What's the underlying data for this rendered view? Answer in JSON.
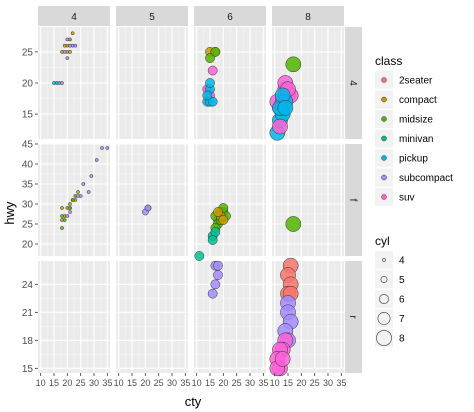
{
  "chart_data": {
    "type": "scatter",
    "xlabel": "cty",
    "ylabel": "hwy",
    "xlim": [
      9,
      36
    ],
    "x_ticks": [
      10,
      15,
      20,
      25,
      30,
      35
    ],
    "facet_cols": [
      "4",
      "5",
      "6",
      "8"
    ],
    "facet_rows": [
      "4",
      "f",
      "r"
    ],
    "row_ylims": [
      [
        11,
        29
      ],
      [
        17,
        45
      ],
      [
        14.5,
        26.5
      ]
    ],
    "row_yticks": [
      [
        15,
        20,
        25
      ],
      [
        20,
        25,
        30,
        35,
        40,
        45
      ],
      [
        15,
        18,
        21,
        24
      ]
    ],
    "grid": true,
    "legend_position": "right",
    "class_legend": {
      "title": "class",
      "items": [
        {
          "label": "2seater",
          "color": "#F8766D"
        },
        {
          "label": "compact",
          "color": "#C49A00"
        },
        {
          "label": "midsize",
          "color": "#53B400"
        },
        {
          "label": "minivan",
          "color": "#00C094"
        },
        {
          "label": "pickup",
          "color": "#00B6EB"
        },
        {
          "label": "subcompact",
          "color": "#A58AFF"
        },
        {
          "label": "suv",
          "color": "#FB61D7"
        }
      ]
    },
    "size_legend": {
      "title": "cyl",
      "items": [
        {
          "label": "4",
          "value": 4
        },
        {
          "label": "5",
          "value": 5
        },
        {
          "label": "6",
          "value": 6
        },
        {
          "label": "7",
          "value": 7
        },
        {
          "label": "8",
          "value": 8
        }
      ]
    },
    "points": [
      {
        "row": "4",
        "col": "4",
        "class": "compact",
        "cty": 18,
        "hwy": 25
      },
      {
        "row": "4",
        "col": "4",
        "class": "compact",
        "cty": 20,
        "hwy": 25
      },
      {
        "row": "4",
        "col": "4",
        "class": "compact",
        "cty": 21,
        "hwy": 25
      },
      {
        "row": "4",
        "col": "4",
        "class": "compact",
        "cty": 21,
        "hwy": 27
      },
      {
        "row": "4",
        "col": "4",
        "class": "compact",
        "cty": 22,
        "hwy": 28
      },
      {
        "row": "4",
        "col": "4",
        "class": "compact",
        "cty": 20,
        "hwy": 26
      },
      {
        "row": "4",
        "col": "4",
        "class": "compact",
        "cty": 19,
        "hwy": 26
      },
      {
        "row": "4",
        "col": "4",
        "class": "subcompact",
        "cty": 19,
        "hwy": 25
      },
      {
        "row": "4",
        "col": "4",
        "class": "subcompact",
        "cty": 20,
        "hwy": 27
      },
      {
        "row": "4",
        "col": "4",
        "class": "subcompact",
        "cty": 21,
        "hwy": 26
      },
      {
        "row": "4",
        "col": "4",
        "class": "subcompact",
        "cty": 22,
        "hwy": 26
      },
      {
        "row": "4",
        "col": "4",
        "class": "subcompact",
        "cty": 23,
        "hwy": 26
      },
      {
        "row": "4",
        "col": "4",
        "class": "subcompact",
        "cty": 20,
        "hwy": 24
      },
      {
        "row": "4",
        "col": "4",
        "class": "pickup",
        "cty": 15,
        "hwy": 20
      },
      {
        "row": "4",
        "col": "4",
        "class": "pickup",
        "cty": 16,
        "hwy": 20
      },
      {
        "row": "4",
        "col": "4",
        "class": "pickup",
        "cty": 17,
        "hwy": 20
      },
      {
        "row": "4",
        "col": "4",
        "class": "suv",
        "cty": 18,
        "hwy": 20
      },
      {
        "row": "4",
        "col": "6",
        "class": "compact",
        "cty": 15,
        "hwy": 25
      },
      {
        "row": "4",
        "col": "6",
        "class": "compact",
        "cty": 17,
        "hwy": 25
      },
      {
        "row": "4",
        "col": "6",
        "class": "midsize",
        "cty": 17,
        "hwy": 25
      },
      {
        "row": "4",
        "col": "6",
        "class": "midsize",
        "cty": 15,
        "hwy": 24
      },
      {
        "row": "4",
        "col": "6",
        "class": "suv",
        "cty": 16,
        "hwy": 22
      },
      {
        "row": "4",
        "col": "6",
        "class": "suv",
        "cty": 14,
        "hwy": 19
      },
      {
        "row": "4",
        "col": "6",
        "class": "suv",
        "cty": 15,
        "hwy": 18
      },
      {
        "row": "4",
        "col": "6",
        "class": "pickup",
        "cty": 14,
        "hwy": 17
      },
      {
        "row": "4",
        "col": "6",
        "class": "pickup",
        "cty": 15,
        "hwy": 17
      },
      {
        "row": "4",
        "col": "6",
        "class": "pickup",
        "cty": 15,
        "hwy": 19
      },
      {
        "row": "4",
        "col": "6",
        "class": "pickup",
        "cty": 16,
        "hwy": 17
      },
      {
        "row": "4",
        "col": "6",
        "class": "pickup",
        "cty": 14,
        "hwy": 18
      },
      {
        "row": "4",
        "col": "6",
        "class": "pickup",
        "cty": 15,
        "hwy": 20
      },
      {
        "row": "4",
        "col": "8",
        "class": "midsize",
        "cty": 17,
        "hwy": 23
      },
      {
        "row": "4",
        "col": "8",
        "class": "suv",
        "cty": 11,
        "hwy": 17
      },
      {
        "row": "4",
        "col": "8",
        "class": "suv",
        "cty": 12,
        "hwy": 16
      },
      {
        "row": "4",
        "col": "8",
        "class": "suv",
        "cty": 13,
        "hwy": 17
      },
      {
        "row": "4",
        "col": "8",
        "class": "suv",
        "cty": 14,
        "hwy": 19
      },
      {
        "row": "4",
        "col": "8",
        "class": "suv",
        "cty": 15,
        "hwy": 18
      },
      {
        "row": "4",
        "col": "8",
        "class": "suv",
        "cty": 16,
        "hwy": 18
      },
      {
        "row": "4",
        "col": "8",
        "class": "suv",
        "cty": 14,
        "hwy": 20
      },
      {
        "row": "4",
        "col": "8",
        "class": "suv",
        "cty": 15,
        "hwy": 19
      },
      {
        "row": "4",
        "col": "8",
        "class": "suv",
        "cty": 13,
        "hwy": 16
      },
      {
        "row": "4",
        "col": "8",
        "class": "pickup",
        "cty": 11,
        "hwy": 12
      },
      {
        "row": "4",
        "col": "8",
        "class": "pickup",
        "cty": 12,
        "hwy": 14
      },
      {
        "row": "4",
        "col": "8",
        "class": "pickup",
        "cty": 13,
        "hwy": 15
      },
      {
        "row": "4",
        "col": "8",
        "class": "pickup",
        "cty": 14,
        "hwy": 17
      },
      {
        "row": "4",
        "col": "8",
        "class": "pickup",
        "cty": 12,
        "hwy": 16
      },
      {
        "row": "4",
        "col": "8",
        "class": "pickup",
        "cty": 13,
        "hwy": 18
      },
      {
        "row": "4",
        "col": "8",
        "class": "pickup",
        "cty": 14,
        "hwy": 16
      },
      {
        "row": "4",
        "col": "8",
        "class": "suv",
        "cty": 12,
        "hwy": 13
      },
      {
        "row": "f",
        "col": "4",
        "class": "compact",
        "cty": 21,
        "hwy": 29
      },
      {
        "row": "f",
        "col": "4",
        "class": "compact",
        "cty": 22,
        "hwy": 31
      },
      {
        "row": "f",
        "col": "4",
        "class": "compact",
        "cty": 24,
        "hwy": 33
      },
      {
        "row": "f",
        "col": "4",
        "class": "compact",
        "cty": 19,
        "hwy": 27
      },
      {
        "row": "f",
        "col": "4",
        "class": "compact",
        "cty": 20,
        "hwy": 29
      },
      {
        "row": "f",
        "col": "4",
        "class": "compact",
        "cty": 21,
        "hwy": 30
      },
      {
        "row": "f",
        "col": "4",
        "class": "compact",
        "cty": 23,
        "hwy": 31
      },
      {
        "row": "f",
        "col": "4",
        "class": "midsize",
        "cty": 21,
        "hwy": 29
      },
      {
        "row": "f",
        "col": "4",
        "class": "midsize",
        "cty": 19,
        "hwy": 26
      },
      {
        "row": "f",
        "col": "4",
        "class": "midsize",
        "cty": 22,
        "hwy": 31
      },
      {
        "row": "f",
        "col": "4",
        "class": "midsize",
        "cty": 23,
        "hwy": 32
      },
      {
        "row": "f",
        "col": "4",
        "class": "midsize",
        "cty": 18,
        "hwy": 27
      },
      {
        "row": "f",
        "col": "4",
        "class": "subcompact",
        "cty": 24,
        "hwy": 32
      },
      {
        "row": "f",
        "col": "4",
        "class": "subcompact",
        "cty": 25,
        "hwy": 32
      },
      {
        "row": "f",
        "col": "4",
        "class": "subcompact",
        "cty": 26,
        "hwy": 35
      },
      {
        "row": "f",
        "col": "4",
        "class": "subcompact",
        "cty": 28,
        "hwy": 33
      },
      {
        "row": "f",
        "col": "4",
        "class": "subcompact",
        "cty": 29,
        "hwy": 37
      },
      {
        "row": "f",
        "col": "4",
        "class": "subcompact",
        "cty": 33,
        "hwy": 44
      },
      {
        "row": "f",
        "col": "4",
        "class": "subcompact",
        "cty": 35,
        "hwy": 44
      },
      {
        "row": "f",
        "col": "4",
        "class": "subcompact",
        "cty": 31,
        "hwy": 41
      },
      {
        "row": "f",
        "col": "4",
        "class": "subcompact",
        "cty": 21,
        "hwy": 28
      },
      {
        "row": "f",
        "col": "4",
        "class": "subcompact",
        "cty": 20,
        "hwy": 27
      },
      {
        "row": "f",
        "col": "4",
        "class": "compact",
        "cty": 18,
        "hwy": 26
      },
      {
        "row": "f",
        "col": "4",
        "class": "compact",
        "cty": 18,
        "hwy": 29
      },
      {
        "row": "f",
        "col": "4",
        "class": "midsize",
        "cty": 18,
        "hwy": 24
      },
      {
        "row": "f",
        "col": "5",
        "class": "compact",
        "cty": 21,
        "hwy": 29
      },
      {
        "row": "f",
        "col": "5",
        "class": "subcompact",
        "cty": 20,
        "hwy": 28
      },
      {
        "row": "f",
        "col": "5",
        "class": "subcompact",
        "cty": 21,
        "hwy": 29
      },
      {
        "row": "f",
        "col": "6",
        "class": "midsize",
        "cty": 18,
        "hwy": 26
      },
      {
        "row": "f",
        "col": "6",
        "class": "midsize",
        "cty": 17,
        "hwy": 27
      },
      {
        "row": "f",
        "col": "6",
        "class": "midsize",
        "cty": 19,
        "hwy": 28
      },
      {
        "row": "f",
        "col": "6",
        "class": "midsize",
        "cty": 20,
        "hwy": 28
      },
      {
        "row": "f",
        "col": "6",
        "class": "midsize",
        "cty": 21,
        "hwy": 27
      },
      {
        "row": "f",
        "col": "6",
        "class": "midsize",
        "cty": 18,
        "hwy": 25
      },
      {
        "row": "f",
        "col": "6",
        "class": "midsize",
        "cty": 19,
        "hwy": 26
      },
      {
        "row": "f",
        "col": "6",
        "class": "midsize",
        "cty": 20,
        "hwy": 29
      },
      {
        "row": "f",
        "col": "6",
        "class": "midsize",
        "cty": 17,
        "hwy": 24
      },
      {
        "row": "f",
        "col": "6",
        "class": "compact",
        "cty": 19,
        "hwy": 27
      },
      {
        "row": "f",
        "col": "6",
        "class": "compact",
        "cty": 18,
        "hwy": 28
      },
      {
        "row": "f",
        "col": "6",
        "class": "compact",
        "cty": 20,
        "hwy": 26
      },
      {
        "row": "f",
        "col": "6",
        "class": "minivan",
        "cty": 16,
        "hwy": 22
      },
      {
        "row": "f",
        "col": "6",
        "class": "minivan",
        "cty": 17,
        "hwy": 23
      },
      {
        "row": "f",
        "col": "6",
        "class": "minivan",
        "cty": 16,
        "hwy": 21
      },
      {
        "row": "f",
        "col": "6",
        "class": "minivan",
        "cty": 11,
        "hwy": 17
      },
      {
        "row": "f",
        "col": "8",
        "class": "midsize",
        "cty": 17,
        "hwy": 25
      },
      {
        "row": "r",
        "col": "6",
        "class": "subcompact",
        "cty": 17,
        "hwy": 26
      },
      {
        "row": "r",
        "col": "6",
        "class": "subcompact",
        "cty": 18,
        "hwy": 26
      },
      {
        "row": "r",
        "col": "6",
        "class": "subcompact",
        "cty": 18,
        "hwy": 25
      },
      {
        "row": "r",
        "col": "6",
        "class": "subcompact",
        "cty": 17,
        "hwy": 24
      },
      {
        "row": "r",
        "col": "6",
        "class": "subcompact",
        "cty": 16,
        "hwy": 23
      },
      {
        "row": "r",
        "col": "8",
        "class": "2seater",
        "cty": 16,
        "hwy": 26
      },
      {
        "row": "r",
        "col": "8",
        "class": "2seater",
        "cty": 15,
        "hwy": 25
      },
      {
        "row": "r",
        "col": "8",
        "class": "2seater",
        "cty": 16,
        "hwy": 24
      },
      {
        "row": "r",
        "col": "8",
        "class": "2seater",
        "cty": 15,
        "hwy": 23
      },
      {
        "row": "r",
        "col": "8",
        "class": "2seater",
        "cty": 16,
        "hwy": 23
      },
      {
        "row": "r",
        "col": "8",
        "class": "subcompact",
        "cty": 15,
        "hwy": 22
      },
      {
        "row": "r",
        "col": "8",
        "class": "subcompact",
        "cty": 15,
        "hwy": 21
      },
      {
        "row": "r",
        "col": "8",
        "class": "subcompact",
        "cty": 16,
        "hwy": 20
      },
      {
        "row": "r",
        "col": "8",
        "class": "subcompact",
        "cty": 14,
        "hwy": 19
      },
      {
        "row": "r",
        "col": "8",
        "class": "subcompact",
        "cty": 15,
        "hwy": 18
      },
      {
        "row": "r",
        "col": "8",
        "class": "suv",
        "cty": 14,
        "hwy": 18
      },
      {
        "row": "r",
        "col": "8",
        "class": "suv",
        "cty": 13,
        "hwy": 17
      },
      {
        "row": "r",
        "col": "8",
        "class": "suv",
        "cty": 12,
        "hwy": 17
      },
      {
        "row": "r",
        "col": "8",
        "class": "suv",
        "cty": 11,
        "hwy": 16
      },
      {
        "row": "r",
        "col": "8",
        "class": "suv",
        "cty": 12,
        "hwy": 15
      },
      {
        "row": "r",
        "col": "8",
        "class": "suv",
        "cty": 11,
        "hwy": 15
      },
      {
        "row": "r",
        "col": "8",
        "class": "suv",
        "cty": 13,
        "hwy": 16
      }
    ]
  }
}
